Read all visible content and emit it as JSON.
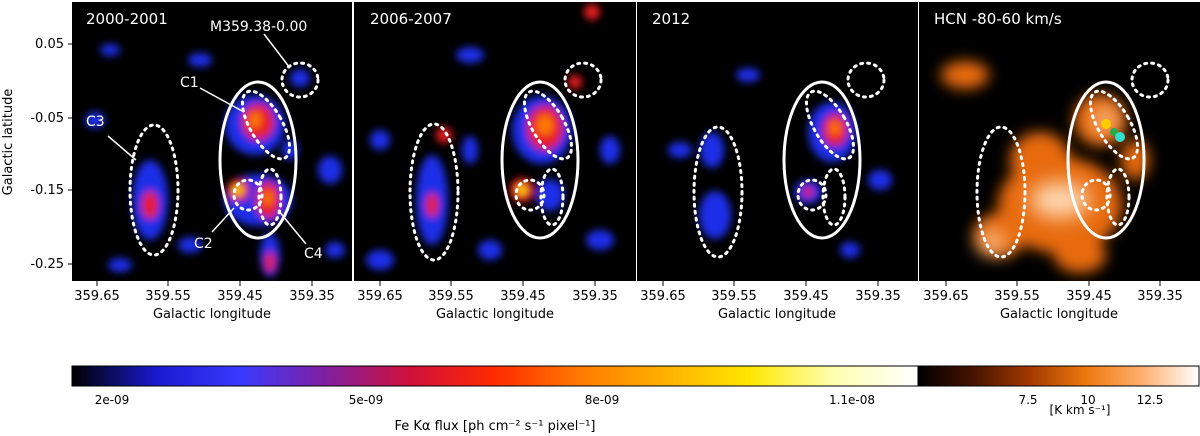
{
  "figure": {
    "y_axis_label": "Galactic latitude",
    "x_axis_label": "Galactic longitude",
    "y_ticks": [
      "0.05",
      "-0.05",
      "-0.15",
      "-0.25"
    ],
    "x_ticks": [
      "359.65",
      "359.55",
      "359.45",
      "359.35"
    ],
    "panels": [
      {
        "title": "2000-2001"
      },
      {
        "title": "2006-2007"
      },
      {
        "title": "2012"
      },
      {
        "title": "HCN -80-60 km/s"
      }
    ],
    "annotations": {
      "m359": "M359.38-0.00",
      "c1": "C1",
      "c2": "C2",
      "c3": "C3",
      "c4": "C4"
    },
    "colorbar_fe": {
      "ticks": [
        "2e-09",
        "5e-09",
        "8e-09",
        "1.1e-08"
      ],
      "label": "Fe Kα flux [ph cm⁻² s⁻¹ pixel⁻¹]",
      "colors": [
        "#000000",
        "#1a1ad0",
        "#3a3aff",
        "#8020a0",
        "#d0103a",
        "#ff2a00",
        "#ff7a00",
        "#ffb000",
        "#ffe600",
        "#ffffb0",
        "#ffffff"
      ]
    },
    "colorbar_hcn": {
      "ticks": [
        "7.5",
        "10",
        "12.5"
      ],
      "label": "[K km s⁻¹]",
      "colors": [
        "#000000",
        "#4a1400",
        "#a43a00",
        "#ee7a10",
        "#ffb070",
        "#ffffff"
      ]
    },
    "colors": {
      "fe_blue": "#1e2ee8",
      "fe_red": "#e81c20",
      "fe_orange": "#ff7a00",
      "fe_yellow": "#ffe000",
      "hcn_orange": "#e86a10",
      "hcn_light": "#ffd8b0",
      "marker_yellow": "#ffcc00",
      "marker_green": "#2aa84a",
      "marker_cyan": "#30e0d0"
    }
  }
}
